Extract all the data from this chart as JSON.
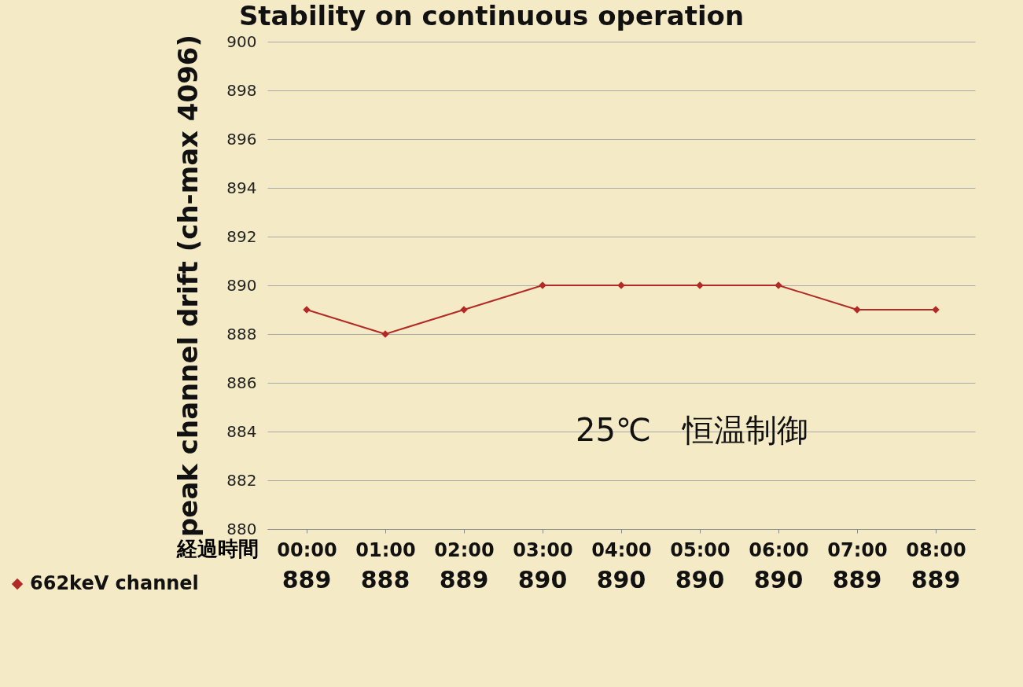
{
  "chart_data": {
    "type": "line",
    "title": "Stability on continuous operation",
    "ylabel": "peak channel drift (ch-max 4096)",
    "xlabel": "経過時間",
    "categories": [
      "00:00",
      "01:00",
      "02:00",
      "03:00",
      "04:00",
      "05:00",
      "06:00",
      "07:00",
      "08:00"
    ],
    "series": [
      {
        "name": "662keV channel",
        "color": "#b22a26",
        "values": [
          889,
          888,
          889,
          890,
          890,
          890,
          890,
          889,
          889
        ]
      }
    ],
    "ylim": [
      880,
      900
    ],
    "yticks": [
      880,
      882,
      884,
      886,
      888,
      890,
      892,
      894,
      896,
      898,
      900
    ],
    "grid": "y",
    "marker": "diamond",
    "line_style": "solid",
    "legend": "bottom left",
    "data_labels": true,
    "annotations": [
      "25℃　恒温制御"
    ]
  }
}
